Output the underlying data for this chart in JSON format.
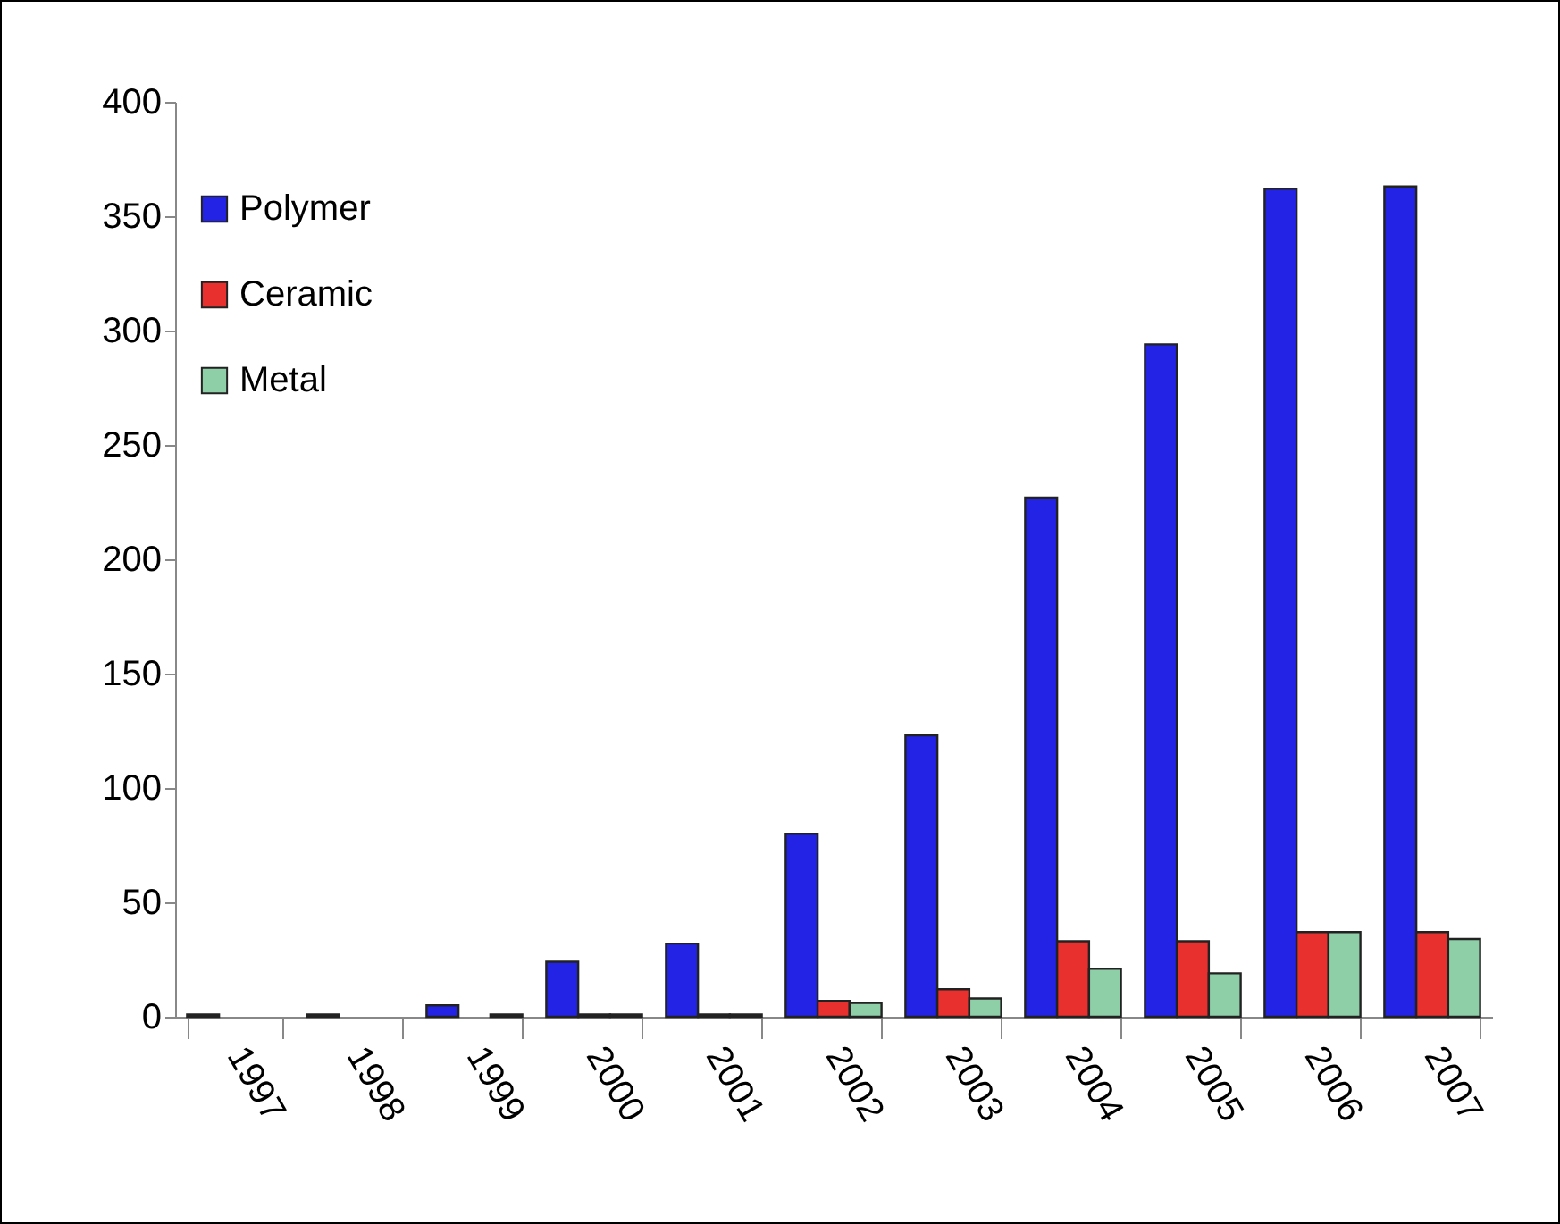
{
  "chart_data": {
    "type": "bar",
    "categories": [
      "1997",
      "1998",
      "1999",
      "2000",
      "2001",
      "2002",
      "2003",
      "2004",
      "2005",
      "2006",
      "2007"
    ],
    "series": [
      {
        "name": "Polymer",
        "color": "#2323e6",
        "values": [
          1,
          1,
          5,
          24,
          32,
          80,
          123,
          227,
          294,
          362,
          363
        ]
      },
      {
        "name": "Ceramic",
        "color": "#e8302e",
        "values": [
          0,
          0,
          0,
          1,
          1,
          7,
          12,
          33,
          33,
          37,
          37
        ]
      },
      {
        "name": "Metal",
        "color": "#8fcfa8",
        "values": [
          0,
          0,
          1,
          1,
          1,
          6,
          8,
          21,
          19,
          37,
          34
        ]
      }
    ],
    "ylim": [
      0,
      400
    ],
    "yticks": [
      0,
      50,
      100,
      150,
      200,
      250,
      300,
      350,
      400
    ],
    "grid": false,
    "legend": "top left"
  }
}
